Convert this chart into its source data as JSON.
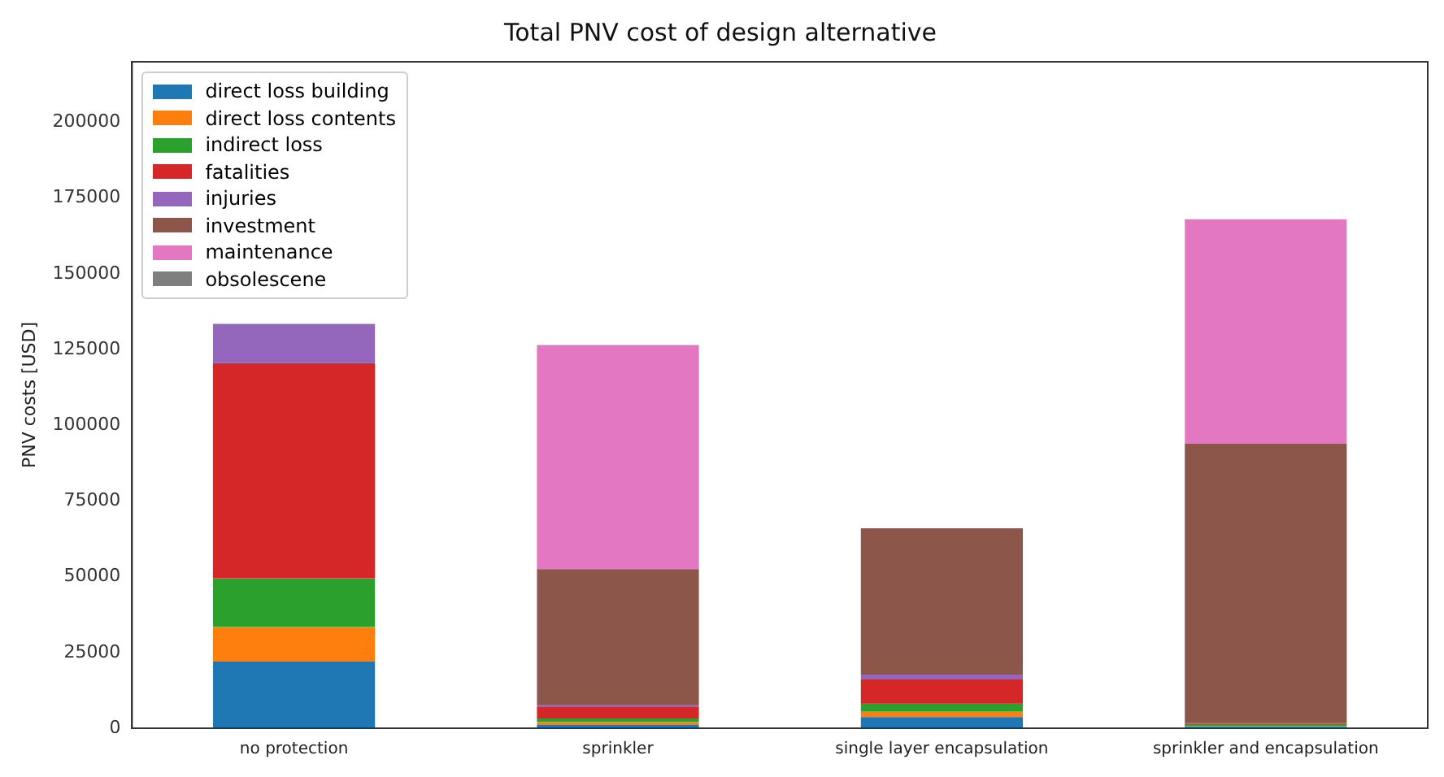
{
  "chart_data": {
    "type": "bar",
    "title": "Total PNV cost of design alternative",
    "ylabel": "PNV costs [USD]",
    "categories": [
      "no protection",
      "sprinkler",
      "single layer encapsulation",
      "sprinkler and encapsulation"
    ],
    "stacked": true,
    "legend": "top left",
    "grid": false,
    "ylim": [
      0,
      220000
    ],
    "yticks": [
      0,
      25000,
      50000,
      75000,
      100000,
      125000,
      150000,
      175000,
      200000
    ],
    "series": [
      {
        "name": "direct loss building",
        "color": "#1f77b4",
        "values": [
          22000,
          1200,
          3700,
          500
        ]
      },
      {
        "name": "direct loss contents",
        "color": "#ff7f0e",
        "values": [
          11500,
          800,
          1700,
          300
        ]
      },
      {
        "name": "indirect loss",
        "color": "#2ca02c",
        "values": [
          16000,
          1200,
          2900,
          600
        ]
      },
      {
        "name": "fatalities",
        "color": "#d62728",
        "values": [
          71000,
          3800,
          8000,
          400
        ]
      },
      {
        "name": "injuries",
        "color": "#9467bd",
        "values": [
          13000,
          800,
          1400,
          0
        ]
      },
      {
        "name": "investment",
        "color": "#8c564b",
        "values": [
          0,
          44700,
          48300,
          92200
        ]
      },
      {
        "name": "maintenance",
        "color": "#e377c2",
        "values": [
          0,
          74000,
          0,
          74000
        ]
      },
      {
        "name": "obsolescene",
        "color": "#7f7f7f",
        "values": [
          0,
          0,
          0,
          0
        ]
      }
    ]
  }
}
